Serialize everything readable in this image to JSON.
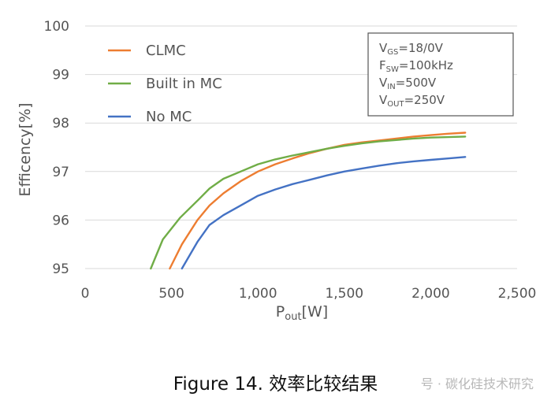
{
  "chart_data": {
    "type": "line",
    "xlabel": "P",
    "xlabel_sub": "out",
    "xlabel_unit": "[W]",
    "ylabel": "Efficency[%]",
    "xlim": [
      0,
      2500
    ],
    "ylim": [
      95,
      100
    ],
    "x_ticks": [
      0,
      500,
      1000,
      1500,
      2000,
      2500
    ],
    "x_tick_labels": [
      "0",
      "500",
      "1,000",
      "1,500",
      "2,000",
      "2,500"
    ],
    "y_ticks": [
      95,
      96,
      97,
      98,
      99,
      100
    ],
    "y_tick_labels": [
      "95",
      "96",
      "97",
      "98",
      "99",
      "100"
    ],
    "grid": "horizontal",
    "legend_position": "top-left",
    "series": [
      {
        "name": "CLMC",
        "color": "#ed7d31",
        "x": [
          490,
          560,
          650,
          720,
          800,
          900,
          1000,
          1100,
          1200,
          1300,
          1400,
          1500,
          1600,
          1700,
          1800,
          1900,
          2000,
          2100,
          2200
        ],
        "y": [
          95.0,
          95.5,
          96.0,
          96.3,
          96.55,
          96.8,
          97.0,
          97.15,
          97.27,
          97.38,
          97.47,
          97.55,
          97.6,
          97.64,
          97.68,
          97.72,
          97.75,
          97.78,
          97.8
        ]
      },
      {
        "name": "Built in MC",
        "color": "#70ad47",
        "x": [
          380,
          450,
          550,
          650,
          720,
          800,
          900,
          1000,
          1100,
          1200,
          1300,
          1400,
          1500,
          1600,
          1700,
          1800,
          1900,
          2000,
          2100,
          2200
        ],
        "y": [
          95.0,
          95.6,
          96.05,
          96.4,
          96.65,
          96.85,
          97.0,
          97.15,
          97.25,
          97.33,
          97.4,
          97.47,
          97.53,
          97.58,
          97.62,
          97.65,
          97.68,
          97.7,
          97.71,
          97.72
        ]
      },
      {
        "name": "No MC",
        "color": "#4472c4",
        "x": [
          560,
          650,
          720,
          800,
          900,
          1000,
          1100,
          1200,
          1300,
          1400,
          1500,
          1600,
          1700,
          1800,
          1900,
          2000,
          2100,
          2200
        ],
        "y": [
          95.0,
          95.55,
          95.9,
          96.1,
          96.3,
          96.5,
          96.63,
          96.74,
          96.83,
          96.92,
          97.0,
          97.06,
          97.12,
          97.17,
          97.21,
          97.24,
          97.27,
          97.3
        ]
      }
    ],
    "conditions": [
      {
        "main": "V",
        "sub": "GS",
        "value": "=18/0V"
      },
      {
        "main": "F",
        "sub": "SW",
        "value": "=100kHz"
      },
      {
        "main": "V",
        "sub": "IN",
        "value": "=500V"
      },
      {
        "main": "V",
        "sub": "OUT",
        "value": "=250V"
      }
    ]
  },
  "caption": "Figure 14. 效率比较结果",
  "watermark": "号 · 碳化硅技术研究",
  "colors": {
    "grid": "#d9d9d9",
    "text": "#555555",
    "box_border": "#555555"
  }
}
